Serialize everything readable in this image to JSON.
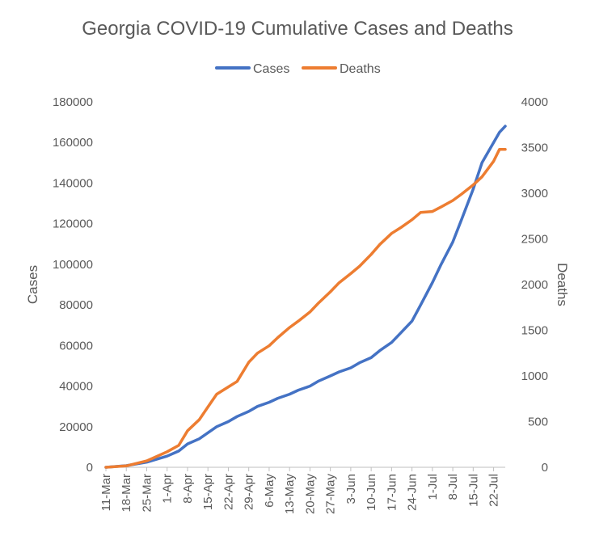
{
  "chart_data": {
    "type": "line",
    "title": "Georgia COVID-19 Cumulative Cases and Deaths",
    "legend": {
      "position": "top-center",
      "entries": [
        "Cases",
        "Deaths"
      ]
    },
    "grid": false,
    "x_axis": {
      "tick_labels": [
        "11-Mar",
        "18-Mar",
        "25-Mar",
        "1-Apr",
        "8-Apr",
        "15-Apr",
        "22-Apr",
        "29-Apr",
        "6-May",
        "13-May",
        "20-May",
        "27-May",
        "3-Jun",
        "10-Jun",
        "17-Jun",
        "24-Jun",
        "1-Jul",
        "8-Jul",
        "15-Jul",
        "22-Jul"
      ],
      "range": [
        "2020-03-11",
        "2020-07-26"
      ]
    },
    "y_left": {
      "label": "Cases",
      "range": [
        0,
        180000
      ],
      "tick_labels": [
        "0",
        "20000",
        "40000",
        "60000",
        "80000",
        "100000",
        "120000",
        "140000",
        "160000",
        "180000"
      ]
    },
    "y_right": {
      "label": "Deaths",
      "range": [
        0,
        4000
      ],
      "tick_labels": [
        "0",
        "500",
        "1000",
        "1500",
        "2000",
        "2500",
        "3000",
        "3500",
        "4000"
      ]
    },
    "x": [
      "2020-03-11",
      "2020-03-18",
      "2020-03-25",
      "2020-04-01",
      "2020-04-05",
      "2020-04-08",
      "2020-04-12",
      "2020-04-15",
      "2020-04-18",
      "2020-04-22",
      "2020-04-25",
      "2020-04-29",
      "2020-05-02",
      "2020-05-06",
      "2020-05-09",
      "2020-05-13",
      "2020-05-16",
      "2020-05-20",
      "2020-05-23",
      "2020-05-27",
      "2020-05-30",
      "2020-06-03",
      "2020-06-06",
      "2020-06-10",
      "2020-06-13",
      "2020-06-17",
      "2020-06-20",
      "2020-06-24",
      "2020-06-27",
      "2020-07-01",
      "2020-07-04",
      "2020-07-08",
      "2020-07-11",
      "2020-07-15",
      "2020-07-18",
      "2020-07-22",
      "2020-07-24",
      "2020-07-26"
    ],
    "series": [
      {
        "name": "Cases",
        "color": "#4472C4",
        "axis": "left",
        "values": [
          0,
          800,
          2500,
          5500,
          8000,
          11500,
          14000,
          17000,
          20000,
          22500,
          25000,
          27500,
          30000,
          32000,
          34000,
          36000,
          38000,
          40000,
          42500,
          45000,
          47000,
          49000,
          51500,
          54000,
          57500,
          61500,
          66000,
          72000,
          80000,
          91000,
          100000,
          111000,
          122000,
          137000,
          150000,
          160000,
          165000,
          168000
        ]
      },
      {
        "name": "Deaths",
        "color": "#ED7D31",
        "axis": "right",
        "values": [
          0,
          15,
          70,
          170,
          240,
          400,
          520,
          660,
          800,
          880,
          940,
          1150,
          1250,
          1330,
          1420,
          1530,
          1600,
          1700,
          1800,
          1920,
          2020,
          2120,
          2200,
          2330,
          2440,
          2560,
          2620,
          2710,
          2790,
          2800,
          2850,
          2920,
          2990,
          3090,
          3180,
          3350,
          3480,
          3480
        ]
      }
    ]
  }
}
